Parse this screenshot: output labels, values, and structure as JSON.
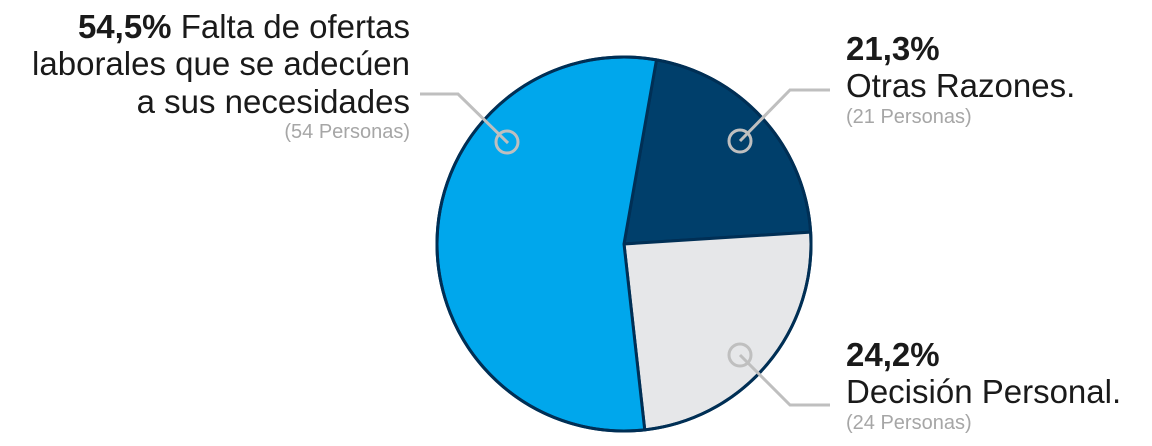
{
  "chart_data": {
    "type": "pie",
    "slices": [
      {
        "percent_label": "21,3%",
        "label": "Otras Razones.",
        "count_label": "(21 Personas)",
        "value": 21,
        "color": "#003f6b"
      },
      {
        "percent_label": "24,2%",
        "label": "Decisión Personal.",
        "count_label": "(24 Personas)",
        "value": 24,
        "color": "#e6e7e9"
      },
      {
        "percent_label": "54,5%",
        "label": "Falta de ofertas laborales que se adecúen a sus necesidades",
        "count_label": "(54 Personas)",
        "value": 54,
        "color": "#00a7ec"
      }
    ],
    "legend": "labels beside slices"
  },
  "labels": {
    "left": {
      "percent": "54,5%",
      "line1": " Falta de ofertas",
      "line2": "laborales que se adecúen",
      "line3": "a sus necesidades",
      "count": "(54 Personas)"
    },
    "topright": {
      "percent": "21,3%",
      "line1": "Otras Razones.",
      "count": "(21 Personas)"
    },
    "bottomright": {
      "percent": "24,2%",
      "line1": "Decisión Personal.",
      "count": "(24 Personas)"
    }
  },
  "colors": {
    "outline": "#002f55",
    "leader": "#bfbfbf"
  }
}
